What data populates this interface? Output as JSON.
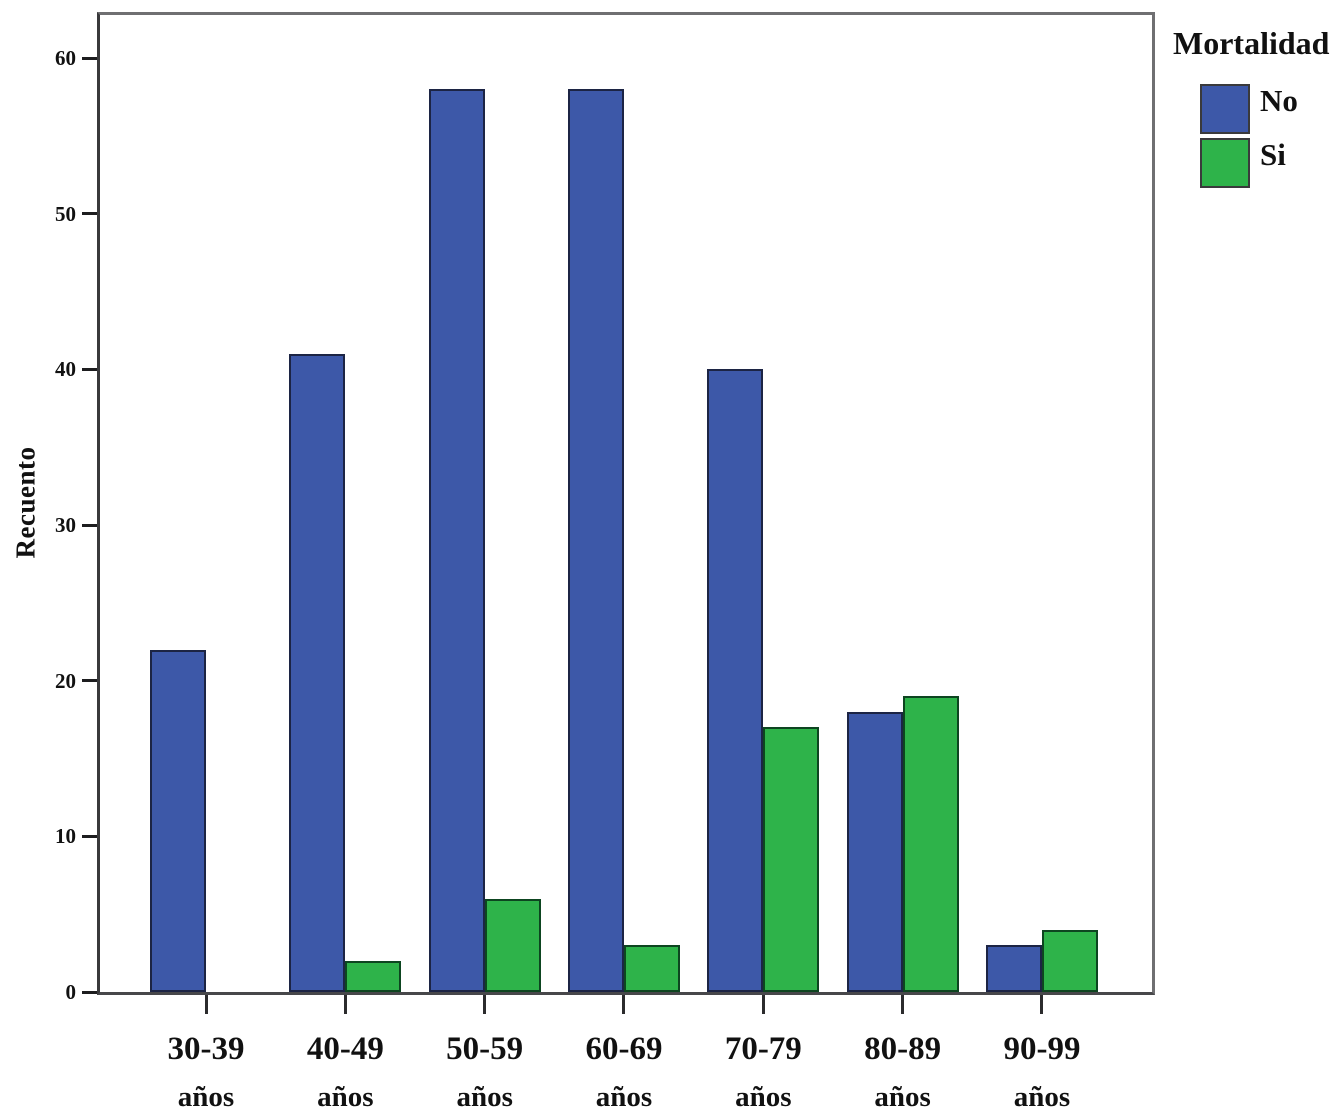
{
  "chart_data": {
    "type": "bar",
    "title": "",
    "xlabel": "",
    "ylabel": "Recuento",
    "legend_title": "Mortalidad",
    "legend_position": "top-right",
    "grid": false,
    "ylim": [
      0,
      60
    ],
    "yticks": [
      0,
      10,
      20,
      30,
      40,
      50,
      60
    ],
    "categories": [
      {
        "label": "30-39",
        "sub": "años"
      },
      {
        "label": "40-49",
        "sub": "años"
      },
      {
        "label": "50-59",
        "sub": "años"
      },
      {
        "label": "60-69",
        "sub": "años"
      },
      {
        "label": "70-79",
        "sub": "años"
      },
      {
        "label": "80-89",
        "sub": "años"
      },
      {
        "label": "90-99",
        "sub": "años"
      }
    ],
    "series": [
      {
        "name": "No",
        "color": "#3d58a8",
        "border_color": "#1c2444",
        "values": [
          22,
          41,
          58,
          58,
          40,
          18,
          3
        ]
      },
      {
        "name": "Si",
        "color": "#2eb34a",
        "border_color": "#0d4520",
        "values": [
          0,
          2,
          6,
          3,
          17,
          19,
          4
        ]
      }
    ]
  }
}
